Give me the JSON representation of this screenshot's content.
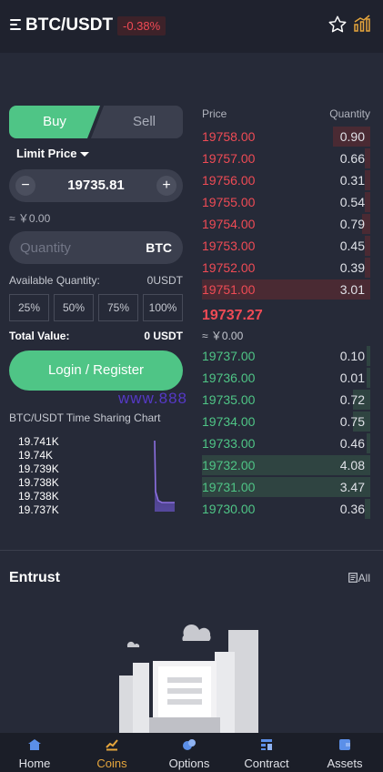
{
  "header": {
    "pair": "BTC/USDT",
    "change": "-0.38%",
    "icons": [
      "menu-icon",
      "star-icon",
      "kline-icon"
    ]
  },
  "trade": {
    "tab_buy": "Buy",
    "tab_sell": "Sell",
    "order_type": "Limit Price",
    "price": "19735.81",
    "price_cny": "≈ ￥0.00",
    "qty_placeholder": "Quantity",
    "qty_unit": "BTC",
    "avail_label": "Available Quantity:",
    "avail_value": "0USDT",
    "percents": [
      "25%",
      "50%",
      "75%",
      "100%"
    ],
    "total_label": "Total Value:",
    "total_value": "0 USDT",
    "login_label": "Login / Register"
  },
  "watermark": "www.888",
  "mini_chart": {
    "title": "BTC/USDT Time Sharing Chart",
    "yticks": [
      "19.741K",
      "19.74K",
      "19.739K",
      "19.738K",
      "19.738K",
      "19.737K"
    ],
    "line_color": "#8b6fe0"
  },
  "orderbook": {
    "head_price": "Price",
    "head_qty": "Quantity",
    "asks": [
      {
        "price": "19758.00",
        "qty": "0.90",
        "depth": 0.22
      },
      {
        "price": "19757.00",
        "qty": "0.66",
        "depth": 0.03
      },
      {
        "price": "19756.00",
        "qty": "0.31",
        "depth": 0.03
      },
      {
        "price": "19755.00",
        "qty": "0.54",
        "depth": 0.03
      },
      {
        "price": "19754.00",
        "qty": "0.79",
        "depth": 0.05
      },
      {
        "price": "19753.00",
        "qty": "0.45",
        "depth": 0.03
      },
      {
        "price": "19752.00",
        "qty": "0.39",
        "depth": 0.03
      },
      {
        "price": "19751.00",
        "qty": "3.01",
        "depth": 1.0
      }
    ],
    "last_price": "19737.27",
    "last_cny": "≈ ￥0.00",
    "bids": [
      {
        "price": "19737.00",
        "qty": "0.10",
        "depth": 0.02
      },
      {
        "price": "19736.00",
        "qty": "0.01",
        "depth": 0.02
      },
      {
        "price": "19735.00",
        "qty": "0.72",
        "depth": 0.1
      },
      {
        "price": "19734.00",
        "qty": "0.75",
        "depth": 0.1
      },
      {
        "price": "19733.00",
        "qty": "0.46",
        "depth": 0.02
      },
      {
        "price": "19732.00",
        "qty": "4.08",
        "depth": 1.0
      },
      {
        "price": "19731.00",
        "qty": "3.47",
        "depth": 1.0
      },
      {
        "price": "19730.00",
        "qty": "0.36",
        "depth": 0.03
      }
    ]
  },
  "entrust": {
    "title": "Entrust",
    "all_label": "All"
  },
  "nav": [
    {
      "label": "Home",
      "icon": "home-icon",
      "active": false
    },
    {
      "label": "Coins",
      "icon": "coins-icon",
      "active": true
    },
    {
      "label": "Options",
      "icon": "options-icon",
      "active": false
    },
    {
      "label": "Contract",
      "icon": "contract-icon",
      "active": false
    },
    {
      "label": "Assets",
      "icon": "wallet-icon",
      "active": false
    }
  ],
  "colors": {
    "up": "#4fc586",
    "down": "#ef4b55",
    "accent": "#e5a53c",
    "background": "#262a38"
  }
}
